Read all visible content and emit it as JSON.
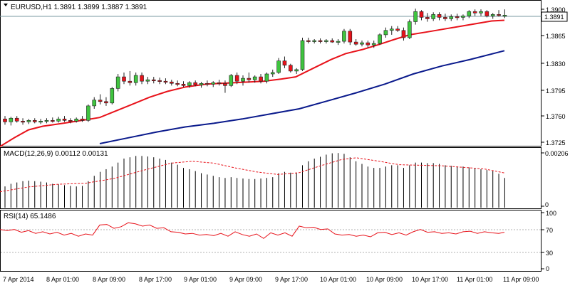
{
  "main": {
    "symbol_line": "EURUSD,H1  1.3891 1.3899 1.3887 1.3891",
    "current_price_tag": "1.3891",
    "price_ticks": [
      "1.3900",
      "1.3865",
      "1.3830",
      "1.3795",
      "1.3760",
      "1.3725"
    ]
  },
  "macd": {
    "title": "MACD(12,26,9) 0.00112 0.00131",
    "axis_top": "0.00206",
    "axis_bottom": "0"
  },
  "rsi": {
    "title": "RSI(14) 65.1486",
    "ticks": [
      "100",
      "70",
      "30",
      "0"
    ]
  },
  "time_axis": {
    "labels": [
      "7 Apr 2014",
      "8 Apr 01:00",
      "8 Apr 09:00",
      "8 Apr 17:00",
      "9 Apr 01:00",
      "9 Apr 09:00",
      "9 Apr 17:00",
      "10 Apr 01:00",
      "10 Apr 09:00",
      "10 Apr 17:00",
      "11 Apr 01:00",
      "11 Apr 09:00"
    ]
  },
  "colors": {
    "bull": "#3fc43f",
    "bear": "#e8121a",
    "ma_fast": "#e8121a",
    "ma_slow": "#0a1a8c",
    "macd_signal": "#e8121a",
    "rsi_line": "#e8121a"
  },
  "chart_data": [
    {
      "type": "candlestick",
      "ylim": [
        1.3712,
        1.3908
      ],
      "candles": [
        [
          1.3748,
          1.3752,
          1.374,
          1.3744
        ],
        [
          1.3744,
          1.3751,
          1.3739,
          1.3749
        ],
        [
          1.3749,
          1.3752,
          1.3743,
          1.3745
        ],
        [
          1.3745,
          1.3749,
          1.374,
          1.3744
        ],
        [
          1.3744,
          1.3748,
          1.3741,
          1.3746
        ],
        [
          1.3746,
          1.3749,
          1.3742,
          1.3744
        ],
        [
          1.3744,
          1.3748,
          1.3741,
          1.3745
        ],
        [
          1.3745,
          1.3749,
          1.3742,
          1.3746
        ],
        [
          1.3746,
          1.375,
          1.3743,
          1.3745
        ],
        [
          1.3745,
          1.3751,
          1.3743,
          1.3748
        ],
        [
          1.3748,
          1.3752,
          1.3744,
          1.3746
        ],
        [
          1.3746,
          1.3749,
          1.3742,
          1.3745
        ],
        [
          1.3745,
          1.375,
          1.3743,
          1.3748
        ],
        [
          1.3748,
          1.3752,
          1.3744,
          1.3746
        ],
        [
          1.3746,
          1.3768,
          1.3744,
          1.3766
        ],
        [
          1.3766,
          1.3778,
          1.3762,
          1.3774
        ],
        [
          1.3774,
          1.3782,
          1.3768,
          1.3772
        ],
        [
          1.3772,
          1.3778,
          1.3766,
          1.377
        ],
        [
          1.377,
          1.3792,
          1.3768,
          1.379
        ],
        [
          1.379,
          1.381,
          1.3786,
          1.3806
        ],
        [
          1.3806,
          1.3812,
          1.3796,
          1.38
        ],
        [
          1.38,
          1.3814,
          1.3794,
          1.3798
        ],
        [
          1.3798,
          1.3812,
          1.3794,
          1.3808
        ],
        [
          1.3808,
          1.3812,
          1.3796,
          1.38
        ],
        [
          1.38,
          1.3806,
          1.3796,
          1.3802
        ],
        [
          1.3802,
          1.3806,
          1.3797,
          1.3801
        ],
        [
          1.3801,
          1.3805,
          1.3796,
          1.38
        ],
        [
          1.38,
          1.3804,
          1.3796,
          1.3799
        ],
        [
          1.3799,
          1.3802,
          1.3794,
          1.3797
        ],
        [
          1.3797,
          1.3801,
          1.3793,
          1.3796
        ],
        [
          1.3796,
          1.38,
          1.3792,
          1.3794
        ],
        [
          1.3794,
          1.38,
          1.3791,
          1.3798
        ],
        [
          1.3798,
          1.3801,
          1.3793,
          1.3795
        ],
        [
          1.3795,
          1.3799,
          1.3791,
          1.3797
        ],
        [
          1.3797,
          1.3801,
          1.3793,
          1.3796
        ],
        [
          1.3796,
          1.38,
          1.3792,
          1.3798
        ],
        [
          1.3798,
          1.3802,
          1.3794,
          1.3797
        ],
        [
          1.3797,
          1.3801,
          1.3784,
          1.3794
        ],
        [
          1.3794,
          1.381,
          1.3792,
          1.3808
        ],
        [
          1.3808,
          1.3812,
          1.3796,
          1.38
        ],
        [
          1.38,
          1.3808,
          1.3794,
          1.3804
        ],
        [
          1.3804,
          1.3812,
          1.3798,
          1.3802
        ],
        [
          1.3802,
          1.3808,
          1.3798,
          1.3806
        ],
        [
          1.3806,
          1.381,
          1.3797,
          1.38
        ],
        [
          1.38,
          1.3812,
          1.3797,
          1.381
        ],
        [
          1.381,
          1.3816,
          1.3806,
          1.3812
        ],
        [
          1.3812,
          1.3832,
          1.381,
          1.3828
        ],
        [
          1.3828,
          1.3834,
          1.3818,
          1.3822
        ],
        [
          1.3822,
          1.3824,
          1.3812,
          1.3814
        ],
        [
          1.3814,
          1.3818,
          1.381,
          1.3816
        ],
        [
          1.3816,
          1.386,
          1.3814,
          1.3856
        ],
        [
          1.3856,
          1.386,
          1.3852,
          1.3855
        ],
        [
          1.3855,
          1.3858,
          1.3852,
          1.3856
        ],
        [
          1.3856,
          1.3859,
          1.3852,
          1.3855
        ],
        [
          1.3855,
          1.3858,
          1.3852,
          1.3856
        ],
        [
          1.3856,
          1.3859,
          1.3853,
          1.3854
        ],
        [
          1.3854,
          1.3858,
          1.385,
          1.3855
        ],
        [
          1.3855,
          1.3872,
          1.3852,
          1.3869
        ],
        [
          1.3869,
          1.3872,
          1.385,
          1.3854
        ],
        [
          1.3854,
          1.3858,
          1.3849,
          1.3851
        ],
        [
          1.3851,
          1.3856,
          1.3848,
          1.3853
        ],
        [
          1.3853,
          1.3856,
          1.3846,
          1.385
        ],
        [
          1.385,
          1.3856,
          1.3846,
          1.3852
        ],
        [
          1.3852,
          1.3866,
          1.385,
          1.3864
        ],
        [
          1.3864,
          1.3874,
          1.386,
          1.387
        ],
        [
          1.387,
          1.3876,
          1.3864,
          1.3872
        ],
        [
          1.3872,
          1.3876,
          1.3868,
          1.387
        ],
        [
          1.387,
          1.3874,
          1.3856,
          1.386
        ],
        [
          1.386,
          1.3885,
          1.3858,
          1.3882
        ],
        [
          1.3882,
          1.39,
          1.3878,
          1.3896
        ],
        [
          1.3896,
          1.3898,
          1.3884,
          1.3888
        ],
        [
          1.3888,
          1.3894,
          1.3882,
          1.3886
        ],
        [
          1.3886,
          1.3895,
          1.3883,
          1.3892
        ],
        [
          1.3892,
          1.3895,
          1.3884,
          1.3888
        ],
        [
          1.3888,
          1.3893,
          1.3883,
          1.3886
        ],
        [
          1.3886,
          1.3892,
          1.3883,
          1.3889
        ],
        [
          1.3889,
          1.3893,
          1.3884,
          1.3888
        ],
        [
          1.3888,
          1.3892,
          1.3884,
          1.389
        ],
        [
          1.389,
          1.3898,
          1.3887,
          1.3896
        ],
        [
          1.3896,
          1.3899,
          1.389,
          1.3894
        ],
        [
          1.3894,
          1.3899,
          1.389,
          1.3896
        ],
        [
          1.3896,
          1.3898,
          1.3888,
          1.389
        ],
        [
          1.389,
          1.3894,
          1.3886,
          1.3892
        ],
        [
          1.3892,
          1.3898,
          1.3889,
          1.3891
        ],
        [
          1.3891,
          1.3899,
          1.3887,
          1.3891
        ]
      ],
      "ma_fast": [
        [
          0,
          1.371
        ],
        [
          20,
          1.3722
        ],
        [
          40,
          1.3733
        ],
        [
          60,
          1.3738
        ],
        [
          75,
          1.374
        ],
        [
          95,
          1.3743
        ],
        [
          115,
          1.3746
        ],
        [
          140,
          1.375
        ],
        [
          160,
          1.3758
        ],
        [
          185,
          1.3768
        ],
        [
          210,
          1.3778
        ],
        [
          235,
          1.3786
        ],
        [
          260,
          1.3792
        ],
        [
          290,
          1.3796
        ],
        [
          330,
          1.3798
        ],
        [
          370,
          1.38
        ],
        [
          395,
          1.3803
        ],
        [
          415,
          1.3806
        ],
        [
          440,
          1.3818
        ],
        [
          465,
          1.383
        ],
        [
          485,
          1.3838
        ],
        [
          510,
          1.3844
        ],
        [
          530,
          1.385
        ],
        [
          555,
          1.3858
        ],
        [
          575,
          1.3864
        ],
        [
          600,
          1.3868
        ],
        [
          630,
          1.3873
        ],
        [
          660,
          1.3878
        ],
        [
          690,
          1.3883
        ],
        [
          708,
          1.3884
        ]
      ],
      "ma_slow": [
        [
          140,
          1.3714
        ],
        [
          180,
          1.3722
        ],
        [
          220,
          1.373
        ],
        [
          260,
          1.3737
        ],
        [
          300,
          1.3742
        ],
        [
          340,
          1.3748
        ],
        [
          380,
          1.3755
        ],
        [
          420,
          1.3762
        ],
        [
          460,
          1.3773
        ],
        [
          500,
          1.3784
        ],
        [
          540,
          1.3796
        ],
        [
          580,
          1.381
        ],
        [
          620,
          1.3821
        ],
        [
          660,
          1.383
        ],
        [
          708,
          1.3842
        ]
      ]
    },
    {
      "type": "bar",
      "name": "MACD",
      "ylim": [
        0,
        0.0022
      ],
      "bar_values": [
        0.0008,
        0.0009,
        0.00095,
        0.001,
        0.00102,
        0.001,
        0.00098,
        0.00095,
        0.0009,
        0.00088,
        0.00085,
        0.00082,
        0.0008,
        0.00082,
        0.001,
        0.0012,
        0.00135,
        0.00145,
        0.00155,
        0.0017,
        0.00185,
        0.0019,
        0.00195,
        0.00195,
        0.00193,
        0.0019,
        0.00185,
        0.0018,
        0.0017,
        0.00162,
        0.0015,
        0.00145,
        0.00138,
        0.0013,
        0.00125,
        0.0012,
        0.00115,
        0.00112,
        0.00115,
        0.00112,
        0.0011,
        0.00108,
        0.00108,
        0.0011,
        0.00112,
        0.00115,
        0.0013,
        0.00135,
        0.00132,
        0.0013,
        0.0016,
        0.00175,
        0.00185,
        0.00192,
        0.002,
        0.00205,
        0.00206,
        0.00203,
        0.0019,
        0.00175,
        0.00165,
        0.00155,
        0.0015,
        0.0015,
        0.00155,
        0.0016,
        0.0016,
        0.0015,
        0.0016,
        0.0017,
        0.0017,
        0.00168,
        0.00168,
        0.00165,
        0.0016,
        0.00158,
        0.00155,
        0.00155,
        0.00152,
        0.00148,
        0.00145,
        0.00142,
        0.00138,
        0.00128,
        0.00112
      ],
      "signal": [
        [
          0,
          0.0006
        ],
        [
          40,
          0.00078
        ],
        [
          80,
          0.00088
        ],
        [
          120,
          0.00092
        ],
        [
          160,
          0.0011
        ],
        [
          200,
          0.0014
        ],
        [
          240,
          0.00168
        ],
        [
          270,
          0.00175
        ],
        [
          300,
          0.00168
        ],
        [
          330,
          0.0015
        ],
        [
          360,
          0.00135
        ],
        [
          390,
          0.00125
        ],
        [
          420,
          0.00132
        ],
        [
          450,
          0.00158
        ],
        [
          480,
          0.00182
        ],
        [
          500,
          0.00188
        ],
        [
          530,
          0.00176
        ],
        [
          560,
          0.00162
        ],
        [
          590,
          0.0016
        ],
        [
          620,
          0.00158
        ],
        [
          650,
          0.00152
        ],
        [
          680,
          0.00146
        ],
        [
          708,
          0.00131
        ]
      ]
    },
    {
      "type": "line",
      "name": "RSI",
      "ylim": [
        0,
        100
      ],
      "levels": [
        70,
        30
      ],
      "values": [
        [
          0,
          70
        ],
        [
          10,
          68
        ],
        [
          20,
          70
        ],
        [
          30,
          65
        ],
        [
          40,
          68
        ],
        [
          50,
          63
        ],
        [
          60,
          66
        ],
        [
          70,
          62
        ],
        [
          80,
          65
        ],
        [
          90,
          60
        ],
        [
          100,
          63
        ],
        [
          110,
          58
        ],
        [
          120,
          62
        ],
        [
          130,
          60
        ],
        [
          140,
          78
        ],
        [
          150,
          79
        ],
        [
          160,
          72
        ],
        [
          170,
          75
        ],
        [
          180,
          82
        ],
        [
          190,
          80
        ],
        [
          200,
          76
        ],
        [
          210,
          78
        ],
        [
          220,
          72
        ],
        [
          230,
          73
        ],
        [
          240,
          66
        ],
        [
          250,
          65
        ],
        [
          260,
          62
        ],
        [
          270,
          63
        ],
        [
          280,
          60
        ],
        [
          290,
          61
        ],
        [
          300,
          59
        ],
        [
          310,
          63
        ],
        [
          320,
          58
        ],
        [
          330,
          66
        ],
        [
          340,
          61
        ],
        [
          350,
          58
        ],
        [
          360,
          62
        ],
        [
          370,
          54
        ],
        [
          380,
          64
        ],
        [
          390,
          60
        ],
        [
          400,
          64
        ],
        [
          410,
          58
        ],
        [
          420,
          76
        ],
        [
          430,
          73
        ],
        [
          440,
          74
        ],
        [
          450,
          70
        ],
        [
          460,
          71
        ],
        [
          470,
          62
        ],
        [
          480,
          60
        ],
        [
          490,
          61
        ],
        [
          500,
          58
        ],
        [
          510,
          60
        ],
        [
          520,
          57
        ],
        [
          530,
          64
        ],
        [
          540,
          65
        ],
        [
          550,
          61
        ],
        [
          560,
          64
        ],
        [
          570,
          60
        ],
        [
          580,
          66
        ],
        [
          590,
          70
        ],
        [
          600,
          65
        ],
        [
          610,
          66
        ],
        [
          620,
          63
        ],
        [
          630,
          64
        ],
        [
          640,
          62
        ],
        [
          650,
          66
        ],
        [
          660,
          67
        ],
        [
          670,
          63
        ],
        [
          680,
          66
        ],
        [
          690,
          64
        ],
        [
          700,
          63
        ],
        [
          708,
          65
        ]
      ]
    }
  ]
}
